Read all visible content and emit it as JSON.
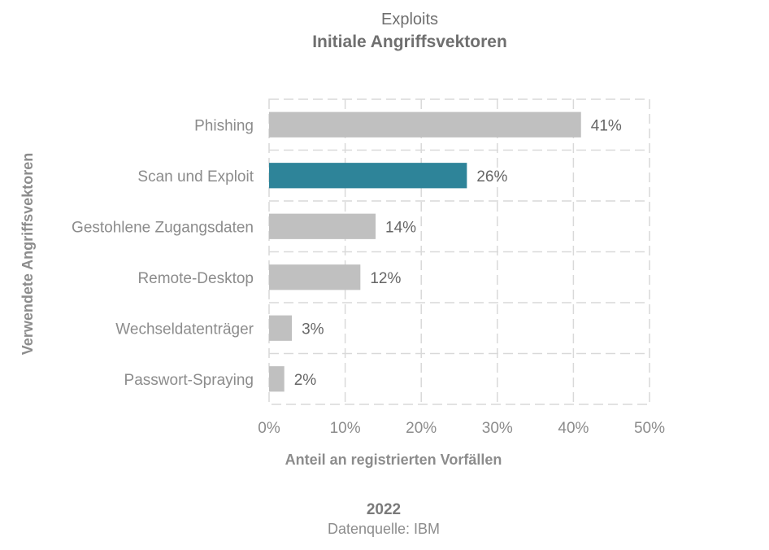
{
  "chart_data": {
    "type": "bar",
    "orientation": "horizontal",
    "supertitle": "Exploits",
    "title": "Initiale Angriffsvektoren",
    "xlabel": "Anteil an registrierten Vorfällen",
    "ylabel": "Verwendete Angriffsvektoren",
    "categories": [
      "Phishing",
      "Scan und Exploit",
      "Gestohlene Zugangsdaten",
      "Remote-Desktop",
      "Wechseldatenträger",
      "Passwort-Spraying"
    ],
    "values": [
      41,
      26,
      14,
      12,
      3,
      2
    ],
    "value_labels": [
      "41%",
      "26%",
      "14%",
      "12%",
      "3%",
      "2%"
    ],
    "xlim": [
      0,
      50
    ],
    "xticks": [
      0,
      10,
      20,
      30,
      40,
      50
    ],
    "xtick_labels": [
      "0%",
      "10%",
      "20%",
      "30%",
      "40%",
      "50%"
    ],
    "grid": true,
    "highlight_index": 1,
    "colors": {
      "bar": "#c0c0c0",
      "highlight": "#2e8499",
      "grid": "#d9d9d9"
    },
    "year": "2022",
    "source": "Datenquelle: IBM"
  }
}
